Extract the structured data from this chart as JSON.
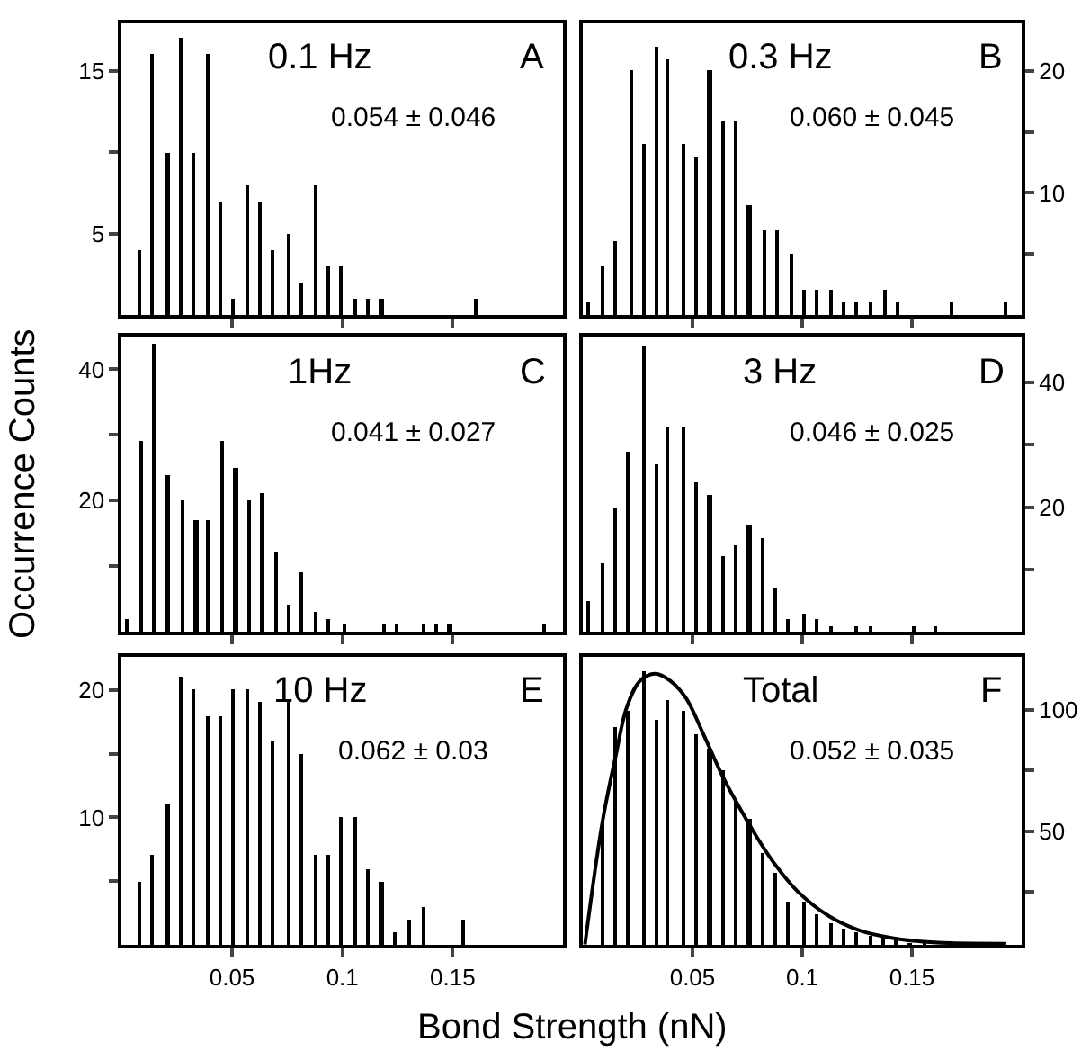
{
  "chart_data": [
    {
      "type": "bar",
      "title": "0.1 Hz",
      "annotations": [
        "A",
        "0.054 ± 0.046"
      ],
      "tick_labels": "y",
      "color": "#000000",
      "x": [
        0.008,
        0.014,
        0.021,
        0.027,
        0.033,
        0.039,
        0.045,
        0.051,
        0.057,
        0.063,
        0.069,
        0.076,
        0.082,
        0.088,
        0.094,
        0.1,
        0.106,
        0.112,
        0.118,
        0.161
      ],
      "values": [
        4,
        16,
        10,
        17,
        10,
        16,
        7,
        1,
        8,
        7,
        4,
        5,
        2,
        8,
        3,
        3,
        1,
        1,
        1,
        1
      ],
      "xlim": [
        0,
        0.2
      ],
      "xticks": [
        0.05,
        0.1,
        0.15
      ],
      "ylim": [
        0,
        17.9
      ],
      "yticks": [
        5,
        {
          "value": 10,
          "label": null
        },
        15
      ]
    },
    {
      "type": "bar",
      "title": "0.3 Hz",
      "annotations": [
        "B",
        "0.060 ± 0.045"
      ],
      "tick_labels": "y",
      "color": "#000000",
      "x": [
        0.003,
        0.009,
        0.015,
        0.022,
        0.028,
        0.034,
        0.039,
        0.046,
        0.052,
        0.058,
        0.064,
        0.07,
        0.076,
        0.083,
        0.089,
        0.095,
        0.101,
        0.107,
        0.113,
        0.119,
        0.125,
        0.131,
        0.138,
        0.144,
        0.168,
        0.193
      ],
      "values": [
        1,
        4,
        6,
        20,
        14,
        22,
        21,
        14,
        13,
        20,
        16,
        16,
        9,
        7,
        7,
        5,
        2,
        2,
        2,
        1,
        1,
        1,
        2,
        1,
        1,
        1
      ],
      "xlim": [
        0,
        0.2
      ],
      "xticks": [
        0.05,
        0.1,
        0.15
      ],
      "ylim": [
        0,
        23.9
      ],
      "yticks": [
        {
          "value": 5,
          "label": null
        },
        10,
        {
          "value": 15,
          "label": null
        },
        20
      ]
    },
    {
      "type": "bar",
      "title": "1Hz",
      "annotations": [
        "C",
        "0.041 ± 0.027"
      ],
      "tick_labels": "y",
      "color": "#000000",
      "x": [
        0.003,
        0.009,
        0.015,
        0.021,
        0.028,
        0.034,
        0.039,
        0.046,
        0.052,
        0.058,
        0.064,
        0.07,
        0.076,
        0.082,
        0.088,
        0.094,
        0.101,
        0.119,
        0.125,
        0.137,
        0.143,
        0.149,
        0.192
      ],
      "values": [
        2,
        29,
        44,
        24,
        20,
        17,
        17,
        29,
        25,
        20,
        21,
        12,
        4,
        9,
        3,
        2,
        1,
        1,
        1,
        1,
        1,
        1,
        1
      ],
      "xlim": [
        0,
        0.2
      ],
      "xticks": [
        0.05,
        0.1,
        0.15
      ],
      "ylim": [
        0,
        45
      ],
      "yticks": [
        {
          "value": 10,
          "label": null
        },
        20,
        {
          "value": 30,
          "label": null
        },
        40
      ]
    },
    {
      "type": "bar",
      "title": "3 Hz",
      "annotations": [
        "D",
        "0.046 ± 0.025"
      ],
      "tick_labels": "y",
      "color": "#000000",
      "x": [
        0.003,
        0.009,
        0.015,
        0.021,
        0.028,
        0.034,
        0.039,
        0.046,
        0.052,
        0.058,
        0.064,
        0.07,
        0.076,
        0.082,
        0.088,
        0.094,
        0.101,
        0.107,
        0.113,
        0.125,
        0.131,
        0.151,
        0.161
      ],
      "values": [
        5,
        11,
        20,
        29,
        46,
        27,
        33,
        33,
        24,
        22,
        12,
        14,
        17,
        15,
        7,
        2,
        3,
        2,
        1,
        1,
        1,
        1,
        1
      ],
      "xlim": [
        0,
        0.2
      ],
      "xticks": [
        0.05,
        0.1,
        0.15
      ],
      "ylim": [
        0,
        47.4
      ],
      "yticks": [
        {
          "value": 10,
          "label": null
        },
        20,
        {
          "value": 30,
          "label": null
        },
        40
      ]
    },
    {
      "type": "bar",
      "title": "10 Hz",
      "annotations": [
        "E",
        "0.062 ± 0.03"
      ],
      "xlabel": "Bond Strength (nN)",
      "color": "#000000",
      "x": [
        0.008,
        0.014,
        0.021,
        0.027,
        0.033,
        0.039,
        0.045,
        0.051,
        0.057,
        0.063,
        0.069,
        0.076,
        0.082,
        0.088,
        0.094,
        0.1,
        0.106,
        0.112,
        0.118,
        0.124,
        0.131,
        0.137,
        0.155
      ],
      "values": [
        5,
        7,
        11,
        21,
        20,
        18,
        18,
        20,
        20,
        19,
        16,
        19,
        15,
        7,
        7,
        10,
        10,
        6,
        5,
        1,
        2,
        3,
        2
      ],
      "xlim": [
        0,
        0.2
      ],
      "xticks": [
        0.05,
        0.1,
        0.15
      ],
      "ylim": [
        0,
        22.6
      ],
      "yticks": [
        {
          "value": 5,
          "label": null
        },
        10,
        {
          "value": 15,
          "label": null
        },
        20
      ]
    },
    {
      "type": "bar",
      "title": "Total",
      "annotations": [
        "F",
        "0.052 ± 0.035"
      ],
      "ylabel": "Occurrence Counts",
      "xlim": [
        0,
        0.2
      ],
      "xticks": [
        0.05,
        0.1,
        0.15
      ],
      "ylim": [
        3,
        122
      ],
      "yticks": [
        {
          "value": 25,
          "label": null
        },
        50,
        {
          "value": 75,
          "label": null
        },
        100
      ],
      "series": [
        {
          "type": "bar",
          "color": "#000000",
          "x": [
            0.009,
            0.015,
            0.021,
            0.028,
            0.034,
            0.039,
            0.046,
            0.052,
            0.058,
            0.064,
            0.07,
            0.076,
            0.082,
            0.088,
            0.094,
            0.101,
            0.107,
            0.113,
            0.119,
            0.125,
            0.131,
            0.137,
            0.143,
            0.149,
            0.156,
            0.162,
            0.168,
            0.174,
            0.18,
            0.186
          ],
          "values": [
            54,
            93,
            100,
            116,
            96,
            104,
            100,
            90,
            84,
            75,
            63,
            55,
            41,
            33,
            21,
            21,
            16,
            12,
            10,
            8,
            7,
            6,
            5,
            4,
            4,
            null,
            4,
            4,
            4,
            4
          ]
        },
        {
          "type": "line",
          "color": "#000000",
          "x": [
            0.001,
            0.009,
            0.015,
            0.02,
            0.026,
            0.033,
            0.04,
            0.047,
            0.055,
            0.063,
            0.07,
            0.079,
            0.087,
            0.098,
            0.112,
            0.126,
            0.14,
            0.154,
            0.168,
            0.193
          ],
          "values": [
            3.2,
            54,
            81,
            101,
            112,
            115,
            112,
            105,
            90,
            74,
            62,
            48,
            37,
            25,
            15,
            9,
            6,
            4.4,
            3.7,
            3.5
          ]
        }
      ]
    }
  ]
}
